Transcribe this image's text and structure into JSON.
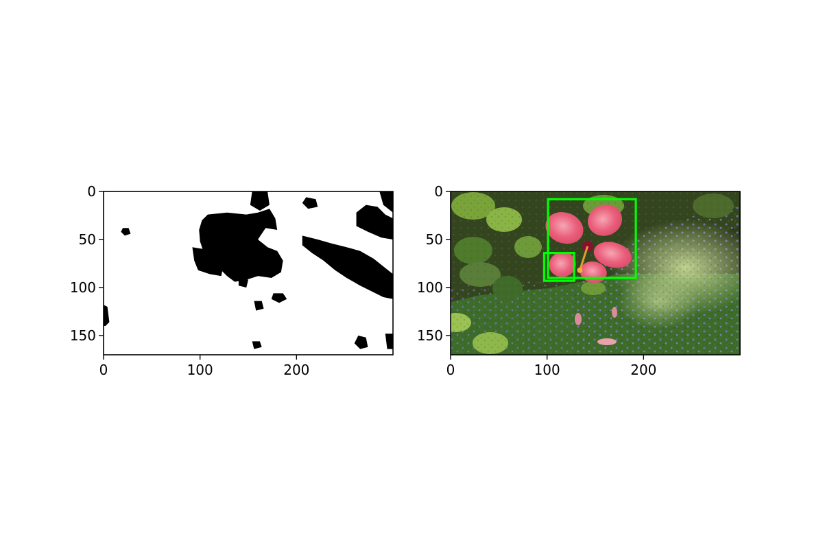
{
  "chart_data": [
    {
      "type": "image",
      "panel": "mask",
      "xlim": [
        0,
        300
      ],
      "ylim": [
        170,
        0
      ],
      "xticks": [
        0,
        100,
        200
      ],
      "yticks": [
        0,
        50,
        100,
        150
      ],
      "grid": false,
      "colormap": "binary",
      "black_regions": [
        {
          "points": [
            [
              102,
              30
            ],
            [
              108,
              24
            ],
            [
              128,
              22
            ],
            [
              148,
              24
            ],
            [
              160,
              22
            ],
            [
              172,
              18
            ],
            [
              178,
              28
            ],
            [
              180,
              40
            ],
            [
              168,
              38
            ],
            [
              160,
              50
            ],
            [
              170,
              58
            ],
            [
              180,
              62
            ],
            [
              186,
              72
            ],
            [
              184,
              84
            ],
            [
              174,
              90
            ],
            [
              160,
              88
            ],
            [
              148,
              92
            ],
            [
              136,
              94
            ],
            [
              128,
              88
            ],
            [
              120,
              80
            ],
            [
              112,
              72
            ],
            [
              104,
              64
            ],
            [
              100,
              52
            ],
            [
              99,
              40
            ]
          ]
        },
        {
          "points": [
            [
              92,
              58
            ],
            [
              104,
              60
            ],
            [
              116,
              68
            ],
            [
              124,
              78
            ],
            [
              122,
              88
            ],
            [
              110,
              86
            ],
            [
              98,
              82
            ],
            [
              94,
              72
            ]
          ]
        },
        {
          "points": [
            [
              206,
              46
            ],
            [
              222,
              50
            ],
            [
              236,
              54
            ],
            [
              252,
              58
            ],
            [
              266,
              62
            ],
            [
              280,
              70
            ],
            [
              290,
              78
            ],
            [
              300,
              86
            ],
            [
              300,
              112
            ],
            [
              290,
              110
            ],
            [
              278,
              104
            ],
            [
              266,
              98
            ],
            [
              252,
              90
            ],
            [
              240,
              82
            ],
            [
              228,
              72
            ],
            [
              216,
              64
            ],
            [
              206,
              56
            ]
          ]
        },
        {
          "points": [
            [
              262,
              22
            ],
            [
              272,
              14
            ],
            [
              284,
              16
            ],
            [
              292,
              24
            ],
            [
              300,
              28
            ],
            [
              300,
              50
            ],
            [
              288,
              48
            ],
            [
              274,
              42
            ],
            [
              262,
              36
            ]
          ]
        },
        {
          "points": [
            [
              286,
              0
            ],
            [
              300,
              0
            ],
            [
              300,
              22
            ],
            [
              290,
              14
            ]
          ]
        },
        {
          "points": [
            [
              154,
              0
            ],
            [
              170,
              0
            ],
            [
              172,
              14
            ],
            [
              162,
              20
            ],
            [
              152,
              14
            ]
          ]
        },
        {
          "points": [
            [
              210,
              6
            ],
            [
              220,
              8
            ],
            [
              222,
              16
            ],
            [
              212,
              18
            ],
            [
              206,
              12
            ]
          ]
        },
        {
          "points": [
            [
              176,
              106
            ],
            [
              186,
              106
            ],
            [
              190,
              112
            ],
            [
              182,
              116
            ],
            [
              174,
              112
            ]
          ]
        },
        {
          "points": [
            [
              0,
              118
            ],
            [
              4,
              120
            ],
            [
              6,
              136
            ],
            [
              2,
              140
            ],
            [
              0,
              140
            ]
          ]
        },
        {
          "points": [
            [
              264,
              150
            ],
            [
              272,
              152
            ],
            [
              274,
              162
            ],
            [
              266,
              164
            ],
            [
              260,
              158
            ]
          ]
        },
        {
          "points": [
            [
              292,
              148
            ],
            [
              300,
              148
            ],
            [
              300,
              164
            ],
            [
              294,
              164
            ]
          ]
        },
        {
          "points": [
            [
              156,
              114
            ],
            [
              164,
              114
            ],
            [
              166,
              122
            ],
            [
              158,
              124
            ]
          ]
        },
        {
          "points": [
            [
              20,
              38
            ],
            [
              26,
              38
            ],
            [
              28,
              44
            ],
            [
              22,
              46
            ],
            [
              18,
              42
            ]
          ]
        },
        {
          "points": [
            [
              154,
              156
            ],
            [
              162,
              156
            ],
            [
              164,
              162
            ],
            [
              156,
              164
            ]
          ]
        },
        {
          "points": [
            [
              140,
              88
            ],
            [
              150,
              92
            ],
            [
              148,
              100
            ],
            [
              140,
              98
            ]
          ]
        }
      ]
    },
    {
      "type": "image",
      "panel": "photo-with-boxes",
      "xlim": [
        0,
        300
      ],
      "ylim": [
        170,
        0
      ],
      "xticks": [
        0,
        100,
        200
      ],
      "yticks": [
        0,
        50,
        100,
        150
      ],
      "grid": false,
      "box_color": "#00ff00",
      "boxes": [
        {
          "x0": 101,
          "y0": 8,
          "x1": 192,
          "y1": 90
        },
        {
          "x0": 97,
          "y0": 64,
          "x1": 128,
          "y1": 93
        }
      ],
      "colors": {
        "grass": "#3d6b2a",
        "dark_foliage": "#2e3a1c",
        "leaf": "#7aa33a",
        "sunlit": "#b9cf86",
        "flower_petal": "#ea5f7b",
        "flower_light": "#f6a6b4",
        "flower_center": "#8a1030",
        "blue_flowers": "#7e7ad6"
      },
      "flower_petals": [
        {
          "cx": 118,
          "cy": 38,
          "rx": 20,
          "ry": 16,
          "angle": 20
        },
        {
          "cx": 160,
          "cy": 30,
          "rx": 18,
          "ry": 16,
          "angle": -20
        },
        {
          "cx": 168,
          "cy": 66,
          "rx": 20,
          "ry": 13,
          "angle": 15
        },
        {
          "cx": 148,
          "cy": 84,
          "rx": 14,
          "ry": 11,
          "angle": 10
        },
        {
          "cx": 116,
          "cy": 76,
          "rx": 14,
          "ry": 13,
          "angle": -10
        }
      ]
    }
  ]
}
